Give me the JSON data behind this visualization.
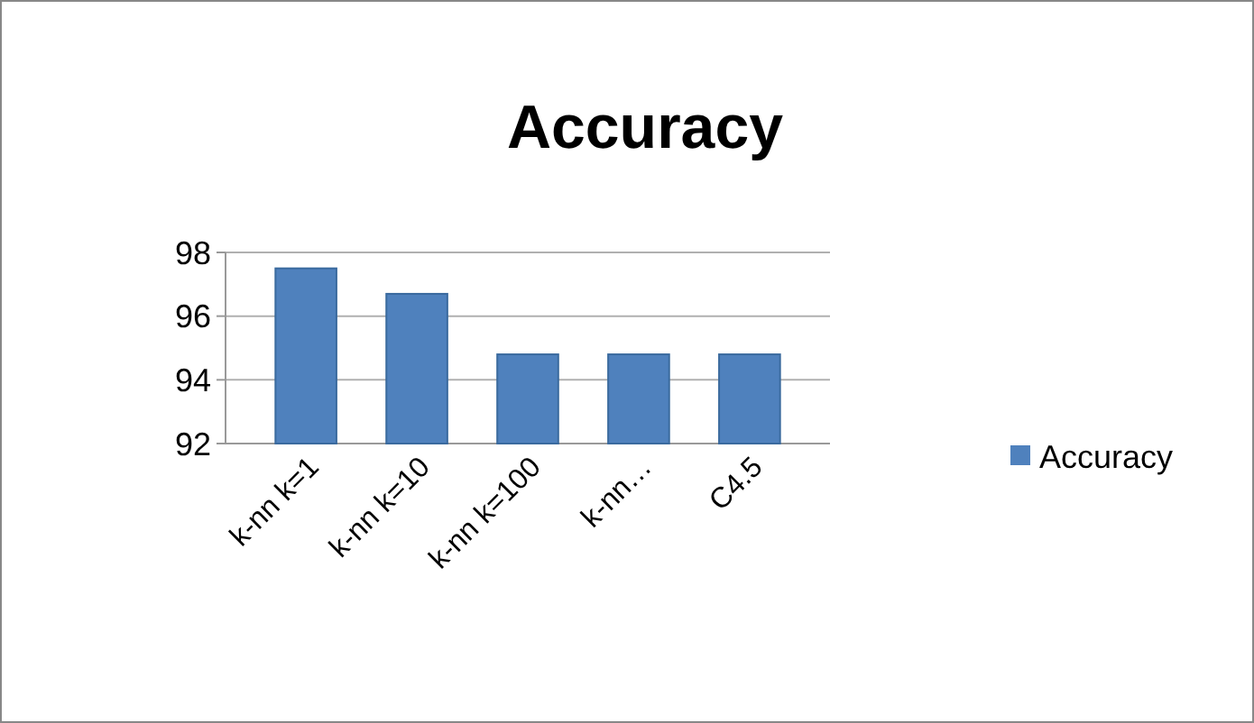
{
  "chart_data": {
    "type": "bar",
    "title": "Accuracy",
    "categories": [
      "k-nn k=1",
      "k-nn k=10",
      "k-nn k=100",
      "k-nn…",
      "C4.5"
    ],
    "series": [
      {
        "name": "Accuracy",
        "color": "#4f81bd",
        "values": [
          97.5,
          96.7,
          94.8,
          94.8,
          94.8
        ]
      }
    ],
    "ylim": [
      92,
      98
    ],
    "yticks": [
      92,
      94,
      96,
      98
    ],
    "grid": "y",
    "legend": "right"
  }
}
